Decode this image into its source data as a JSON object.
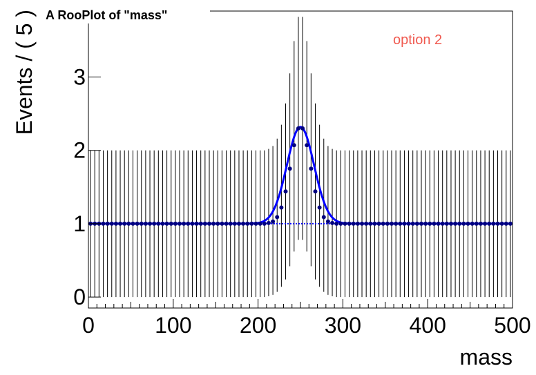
{
  "chart_data": {
    "type": "scatter",
    "title": "A RooPlot of \"mass\"",
    "xlabel": "mass",
    "ylabel": "Events / ( 5 )",
    "xlim": [
      0,
      500
    ],
    "ylim": [
      -0.15,
      3.9
    ],
    "x_ticks": [
      "0",
      "100",
      "200",
      "300",
      "400",
      "500"
    ],
    "y_ticks": [
      "0",
      "1",
      "2",
      "3"
    ],
    "grid": false,
    "annotation": "option 2",
    "colors": {
      "points": "#00007f",
      "curve": "#0000ff",
      "baseline": "#0000ff",
      "errorbars": "#000000",
      "annotation": "#f05a50"
    },
    "series": [
      {
        "kind": "points-with-errors",
        "x": [
          2.5,
          7.5,
          12.5,
          17.5,
          22.5,
          27.5,
          32.5,
          37.5,
          42.5,
          47.5,
          52.5,
          57.5,
          62.5,
          67.5,
          72.5,
          77.5,
          82.5,
          87.5,
          92.5,
          97.5,
          102.5,
          107.5,
          112.5,
          117.5,
          122.5,
          127.5,
          132.5,
          137.5,
          142.5,
          147.5,
          152.5,
          157.5,
          162.5,
          167.5,
          172.5,
          177.5,
          182.5,
          187.5,
          192.5,
          197.5,
          202.5,
          207.5,
          212.5,
          217.5,
          222.5,
          227.5,
          232.5,
          237.5,
          242.5,
          247.5,
          252.5,
          257.5,
          262.5,
          267.5,
          272.5,
          277.5,
          282.5,
          287.5,
          292.5,
          297.5,
          302.5,
          307.5,
          312.5,
          317.5,
          322.5,
          327.5,
          332.5,
          337.5,
          342.5,
          347.5,
          352.5,
          357.5,
          362.5,
          367.5,
          372.5,
          377.5,
          382.5,
          387.5,
          392.5,
          397.5,
          402.5,
          407.5,
          412.5,
          417.5,
          422.5,
          427.5,
          432.5,
          437.5,
          442.5,
          447.5,
          452.5,
          457.5,
          462.5,
          467.5,
          472.5,
          477.5,
          482.5,
          487.5,
          492.5,
          497.5
        ],
        "y": [
          1,
          1,
          1,
          1,
          1,
          1,
          1,
          1,
          1,
          1,
          1,
          1,
          1,
          1,
          1,
          1,
          1,
          1,
          1,
          1,
          1,
          1,
          1,
          1,
          1,
          1,
          1,
          1,
          1,
          1,
          1,
          1,
          1,
          1,
          1,
          1,
          1,
          1,
          1,
          1,
          1,
          1,
          1.01,
          1.03,
          1.09,
          1.22,
          1.44,
          1.75,
          2.07,
          2.3,
          2.3,
          2.07,
          1.75,
          1.44,
          1.22,
          1.09,
          1.03,
          1.01,
          1,
          1,
          1,
          1,
          1,
          1,
          1,
          1,
          1,
          1,
          1,
          1,
          1,
          1,
          1,
          1,
          1,
          1,
          1,
          1,
          1,
          1,
          1,
          1,
          1,
          1,
          1,
          1,
          1,
          1,
          1,
          1,
          1,
          1,
          1,
          1,
          1,
          1,
          1,
          1,
          1,
          1
        ],
        "err_low": [
          1,
          1,
          1,
          1,
          1,
          1,
          1,
          1,
          1,
          1,
          1,
          1,
          1,
          1,
          1,
          1,
          1,
          1,
          1,
          1,
          1,
          1,
          1,
          1,
          1,
          1,
          1,
          1,
          1,
          1,
          1,
          1,
          1,
          1,
          1,
          1,
          1,
          1,
          1,
          1,
          1,
          1,
          1,
          1,
          1.02,
          1.08,
          1.2,
          1.33,
          1.45,
          1.52,
          1.52,
          1.45,
          1.33,
          1.2,
          1.08,
          1.02,
          1,
          1,
          1,
          1,
          1,
          1,
          1,
          1,
          1,
          1,
          1,
          1,
          1,
          1,
          1,
          1,
          1,
          1,
          1,
          1,
          1,
          1,
          1,
          1,
          1,
          1,
          1,
          1,
          1,
          1,
          1,
          1,
          1,
          1,
          1,
          1,
          1,
          1,
          1,
          1,
          1,
          1,
          1,
          1
        ],
        "err_high": [
          1,
          1,
          1,
          1,
          1,
          1,
          1,
          1,
          1,
          1,
          1,
          1,
          1,
          1,
          1,
          1,
          1,
          1,
          1,
          1,
          1,
          1,
          1,
          1,
          1,
          1,
          1,
          1,
          1,
          1,
          1,
          1,
          1,
          1,
          1,
          1,
          1,
          1,
          1,
          1,
          1,
          1,
          1.01,
          1.03,
          1.07,
          1.13,
          1.2,
          1.3,
          1.42,
          1.52,
          1.52,
          1.42,
          1.3,
          1.2,
          1.13,
          1.07,
          1.03,
          1.01,
          1,
          1,
          1,
          1,
          1,
          1,
          1,
          1,
          1,
          1,
          1,
          1,
          1,
          1,
          1,
          1,
          1,
          1,
          1,
          1,
          1,
          1,
          1,
          1,
          1,
          1,
          1,
          1,
          1,
          1,
          1,
          1,
          1,
          1,
          1,
          1,
          1,
          1,
          1,
          1,
          1,
          1
        ]
      },
      {
        "kind": "curve",
        "function": "gaussian-plus-constant",
        "constant": 1.0,
        "amplitude": 1.32,
        "mean": 250,
        "sigma": 16
      },
      {
        "kind": "baseline",
        "value": 1.0,
        "style": "dotted"
      }
    ]
  }
}
